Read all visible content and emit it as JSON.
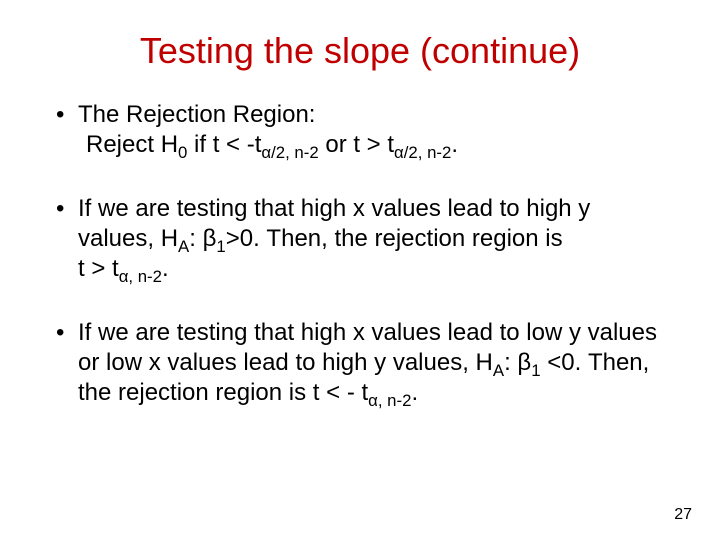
{
  "title_color": "#c00000",
  "text_color": "#000000",
  "title": "Testing the slope (continue)",
  "page": "27",
  "b1": {
    "line1": "The Rejection Region:",
    "line2_pre": "Reject H",
    "line2_sub1": "0",
    "line2_mid1": " if   t < -t",
    "line2_sub2": "α/2, n-2",
    "line2_mid2": " or t > t",
    "line2_sub3": "α/2, n-2",
    "line2_end": "."
  },
  "b2": {
    "p1": "If we are testing that high x values lead to high y values, H",
    "sub1": "A",
    "p2": ": β",
    "sub2": "1",
    "p3": ">0. Then, the rejection region is",
    "line2_pre": "t > t",
    "line2_sub": "α, n-2",
    "line2_end": "."
  },
  "b3": {
    "p1": "If we are testing that high x values lead to low y values or low x values lead to high y values, H",
    "sub1": "A",
    "p2": ": β",
    "sub2": "1",
    "p3": " <0. Then, the rejection region is t < - t",
    "sub3": "α, n-2",
    "p4": "."
  }
}
